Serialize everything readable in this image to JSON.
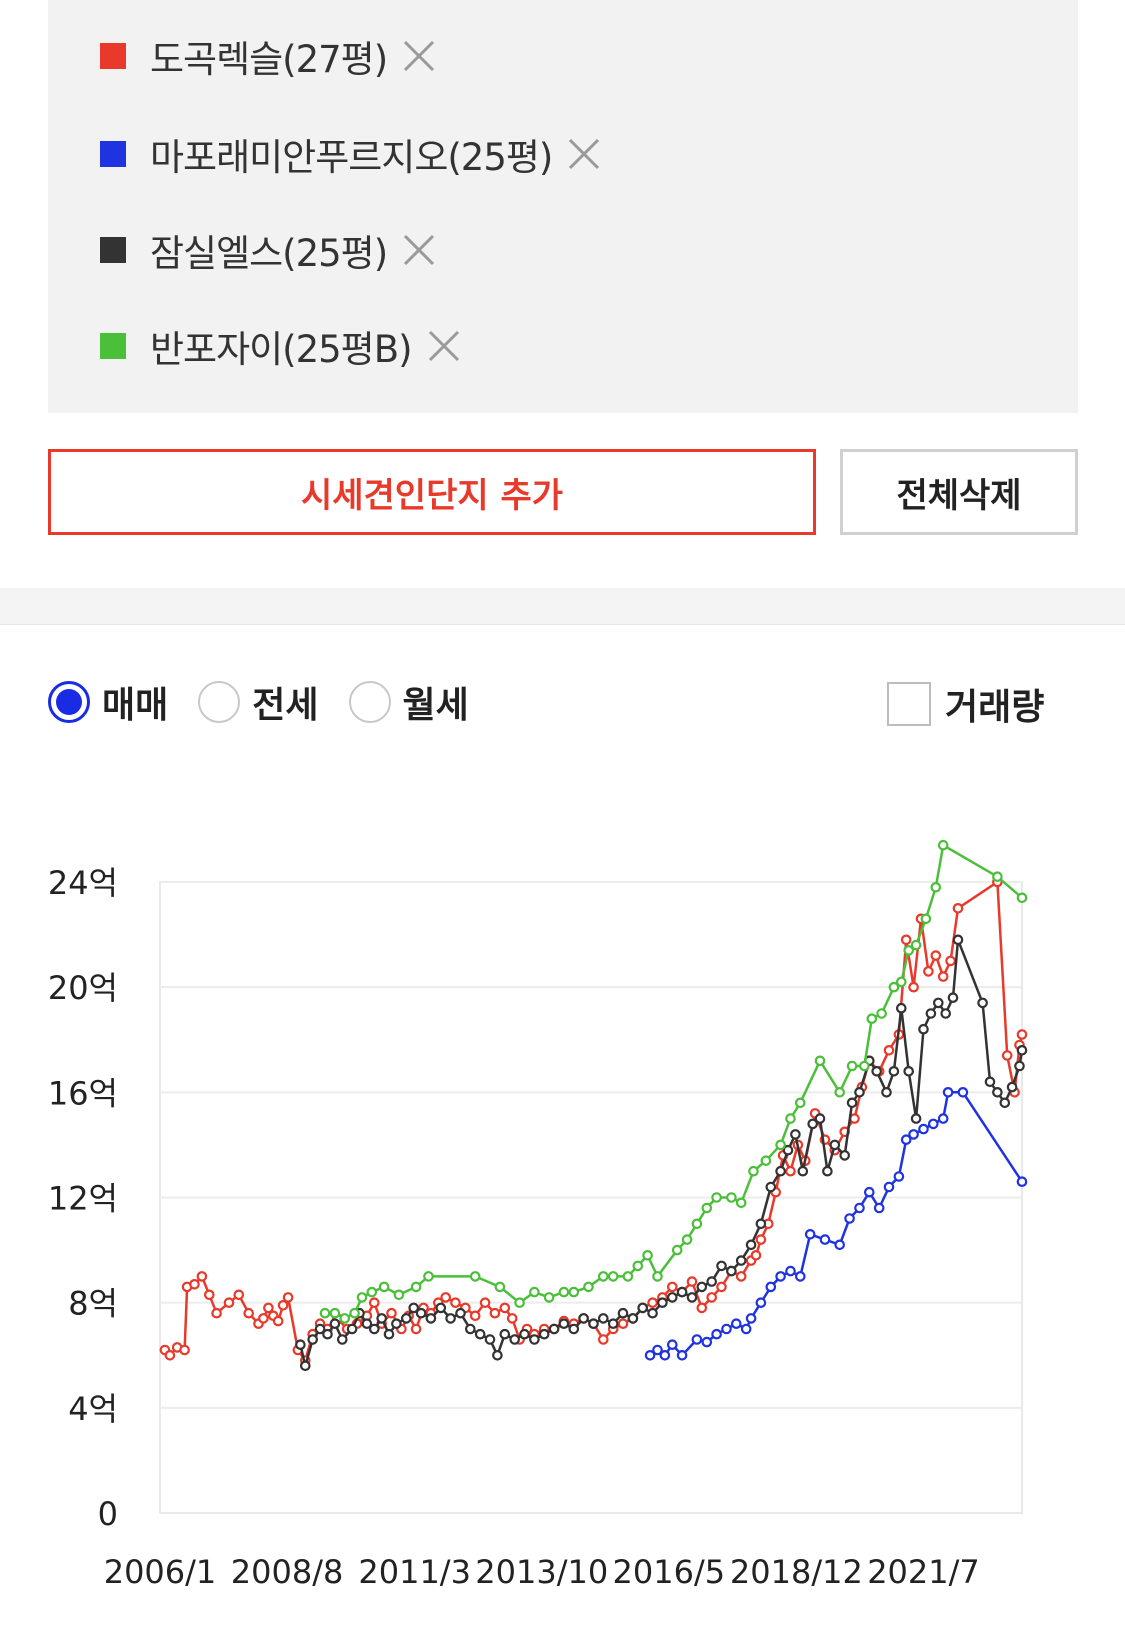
{
  "compare_list": {
    "items": [
      {
        "name": "도곡렉슬(27평)",
        "color": "#e8392a",
        "remove_icon": "close-icon"
      },
      {
        "name": "마포래미안푸르지오(25평)",
        "color": "#1f33e0",
        "remove_icon": "close-icon"
      },
      {
        "name": "잠실엘스(25평)",
        "color": "#333333",
        "remove_icon": "close-icon"
      },
      {
        "name": "반포자이(25평B)",
        "color": "#4bbf3a",
        "remove_icon": "close-icon"
      }
    ]
  },
  "actions": {
    "add_label": "시세견인단지 추가",
    "delete_all_label": "전체삭제"
  },
  "chart_controls": {
    "radios": [
      {
        "label": "매매",
        "checked": true
      },
      {
        "label": "전세",
        "checked": false
      },
      {
        "label": "월세",
        "checked": false
      }
    ],
    "volume_label": "거래량",
    "volume_checked": false
  },
  "chart_data": {
    "type": "line",
    "y_ticks": [
      "0",
      "4억",
      "8억",
      "12억",
      "16억",
      "20억",
      "24억"
    ],
    "ylim": [
      0,
      24
    ],
    "y_unit": "억",
    "x_ticks": [
      "2006/1",
      "2008/8",
      "2011/3",
      "2013/10",
      "2016/5",
      "2018/12",
      "2021/7"
    ],
    "x_tick_values": [
      2006.0,
      2008.58,
      2011.17,
      2013.75,
      2016.33,
      2018.92,
      2021.5
    ],
    "xlim": [
      2006.0,
      2023.5
    ],
    "grid": true,
    "series": [
      {
        "name": "도곡렉슬(27평)",
        "color": "#e8392a",
        "points": [
          [
            2006.1,
            6.2
          ],
          [
            2006.2,
            6.0
          ],
          [
            2006.35,
            6.3
          ],
          [
            2006.5,
            6.2
          ],
          [
            2006.55,
            8.6
          ],
          [
            2006.7,
            8.7
          ],
          [
            2006.85,
            9.0
          ],
          [
            2007.0,
            8.3
          ],
          [
            2007.15,
            7.6
          ],
          [
            2007.4,
            8.0
          ],
          [
            2007.6,
            8.3
          ],
          [
            2007.8,
            7.6
          ],
          [
            2008.0,
            7.2
          ],
          [
            2008.1,
            7.4
          ],
          [
            2008.2,
            7.8
          ],
          [
            2008.3,
            7.5
          ],
          [
            2008.4,
            7.3
          ],
          [
            2008.5,
            7.9
          ],
          [
            2008.6,
            8.2
          ],
          [
            2008.8,
            6.2
          ],
          [
            2008.95,
            5.8
          ],
          [
            2009.1,
            6.8
          ],
          [
            2009.25,
            7.2
          ],
          [
            2009.4,
            7.0
          ],
          [
            2009.6,
            7.4
          ],
          [
            2009.8,
            7.0
          ],
          [
            2010.0,
            7.2
          ],
          [
            2010.2,
            7.5
          ],
          [
            2010.35,
            8.0
          ],
          [
            2010.5,
            7.2
          ],
          [
            2010.7,
            7.6
          ],
          [
            2010.9,
            7.0
          ],
          [
            2011.05,
            7.5
          ],
          [
            2011.2,
            7.0
          ],
          [
            2011.35,
            7.8
          ],
          [
            2011.5,
            7.6
          ],
          [
            2011.65,
            8.0
          ],
          [
            2011.8,
            8.2
          ],
          [
            2012.0,
            8.0
          ],
          [
            2012.2,
            7.8
          ],
          [
            2012.4,
            7.5
          ],
          [
            2012.6,
            8.0
          ],
          [
            2012.8,
            7.6
          ],
          [
            2013.0,
            7.8
          ],
          [
            2013.15,
            7.4
          ],
          [
            2013.3,
            6.6
          ],
          [
            2013.45,
            7.0
          ],
          [
            2013.6,
            6.8
          ],
          [
            2013.8,
            7.0
          ],
          [
            2014.0,
            7.0
          ],
          [
            2014.2,
            7.3
          ],
          [
            2014.4,
            7.2
          ],
          [
            2014.6,
            7.4
          ],
          [
            2014.8,
            7.2
          ],
          [
            2015.0,
            6.6
          ],
          [
            2015.2,
            7.0
          ],
          [
            2015.4,
            7.2
          ],
          [
            2015.6,
            7.4
          ],
          [
            2015.8,
            7.8
          ],
          [
            2016.0,
            8.0
          ],
          [
            2016.2,
            8.2
          ],
          [
            2016.4,
            8.6
          ],
          [
            2016.6,
            8.4
          ],
          [
            2016.8,
            8.8
          ],
          [
            2017.0,
            7.8
          ],
          [
            2017.2,
            8.2
          ],
          [
            2017.4,
            8.6
          ],
          [
            2017.6,
            9.2
          ],
          [
            2017.8,
            9.0
          ],
          [
            2018.0,
            9.6
          ],
          [
            2018.1,
            9.8
          ],
          [
            2018.2,
            10.4
          ],
          [
            2018.35,
            11.0
          ],
          [
            2018.5,
            12.2
          ],
          [
            2018.65,
            13.6
          ],
          [
            2018.8,
            13.0
          ],
          [
            2018.95,
            14.0
          ],
          [
            2019.1,
            13.4
          ],
          [
            2019.3,
            15.2
          ],
          [
            2019.5,
            14.2
          ],
          [
            2019.7,
            13.8
          ],
          [
            2019.9,
            14.5
          ],
          [
            2020.1,
            15.0
          ],
          [
            2020.25,
            16.2
          ],
          [
            2020.4,
            17.2
          ],
          [
            2020.6,
            16.8
          ],
          [
            2020.8,
            17.6
          ],
          [
            2021.0,
            18.2
          ],
          [
            2021.15,
            21.8
          ],
          [
            2021.3,
            20.0
          ],
          [
            2021.45,
            22.6
          ],
          [
            2021.6,
            20.6
          ],
          [
            2021.75,
            21.2
          ],
          [
            2021.9,
            20.4
          ],
          [
            2022.05,
            21.0
          ],
          [
            2022.2,
            23.0
          ],
          [
            2023.0,
            24.0
          ],
          [
            2023.2,
            17.4
          ],
          [
            2023.35,
            16.0
          ],
          [
            2023.45,
            17.8
          ],
          [
            2023.5,
            18.2
          ]
        ]
      },
      {
        "name": "마포래미안푸르지오(25평)",
        "color": "#1f33e0",
        "points": [
          [
            2015.95,
            6.0
          ],
          [
            2016.1,
            6.2
          ],
          [
            2016.25,
            6.0
          ],
          [
            2016.4,
            6.4
          ],
          [
            2016.6,
            6.0
          ],
          [
            2016.9,
            6.6
          ],
          [
            2017.1,
            6.5
          ],
          [
            2017.3,
            6.8
          ],
          [
            2017.5,
            7.0
          ],
          [
            2017.7,
            7.2
          ],
          [
            2017.9,
            7.0
          ],
          [
            2018.0,
            7.4
          ],
          [
            2018.2,
            8.0
          ],
          [
            2018.4,
            8.6
          ],
          [
            2018.6,
            9.0
          ],
          [
            2018.8,
            9.2
          ],
          [
            2019.0,
            9.0
          ],
          [
            2019.2,
            10.6
          ],
          [
            2019.5,
            10.4
          ],
          [
            2019.8,
            10.2
          ],
          [
            2020.0,
            11.2
          ],
          [
            2020.2,
            11.6
          ],
          [
            2020.4,
            12.2
          ],
          [
            2020.6,
            11.6
          ],
          [
            2020.8,
            12.4
          ],
          [
            2021.0,
            12.8
          ],
          [
            2021.15,
            14.2
          ],
          [
            2021.3,
            14.4
          ],
          [
            2021.5,
            14.6
          ],
          [
            2021.7,
            14.8
          ],
          [
            2021.9,
            15.0
          ],
          [
            2022.0,
            16.0
          ],
          [
            2022.3,
            16.0
          ],
          [
            2023.5,
            12.6
          ]
        ]
      },
      {
        "name": "잠실엘스(25평)",
        "color": "#333333",
        "points": [
          [
            2008.85,
            6.4
          ],
          [
            2008.95,
            5.6
          ],
          [
            2009.1,
            6.6
          ],
          [
            2009.25,
            7.0
          ],
          [
            2009.4,
            6.8
          ],
          [
            2009.55,
            7.2
          ],
          [
            2009.7,
            6.6
          ],
          [
            2009.9,
            7.0
          ],
          [
            2010.05,
            7.6
          ],
          [
            2010.2,
            7.2
          ],
          [
            2010.35,
            7.0
          ],
          [
            2010.5,
            7.4
          ],
          [
            2010.65,
            6.8
          ],
          [
            2010.8,
            7.2
          ],
          [
            2011.0,
            7.4
          ],
          [
            2011.15,
            7.8
          ],
          [
            2011.3,
            7.6
          ],
          [
            2011.5,
            7.4
          ],
          [
            2011.7,
            7.8
          ],
          [
            2011.9,
            7.4
          ],
          [
            2012.1,
            7.6
          ],
          [
            2012.3,
            7.0
          ],
          [
            2012.5,
            6.8
          ],
          [
            2012.7,
            6.6
          ],
          [
            2012.85,
            6.0
          ],
          [
            2013.0,
            6.8
          ],
          [
            2013.2,
            6.6
          ],
          [
            2013.4,
            6.8
          ],
          [
            2013.6,
            6.6
          ],
          [
            2013.8,
            6.8
          ],
          [
            2014.0,
            7.0
          ],
          [
            2014.2,
            7.2
          ],
          [
            2014.4,
            7.0
          ],
          [
            2014.6,
            7.4
          ],
          [
            2014.8,
            7.2
          ],
          [
            2015.0,
            7.4
          ],
          [
            2015.2,
            7.2
          ],
          [
            2015.4,
            7.6
          ],
          [
            2015.6,
            7.4
          ],
          [
            2015.8,
            7.8
          ],
          [
            2016.0,
            7.6
          ],
          [
            2016.2,
            8.0
          ],
          [
            2016.4,
            8.2
          ],
          [
            2016.6,
            8.4
          ],
          [
            2016.8,
            8.2
          ],
          [
            2017.0,
            8.6
          ],
          [
            2017.2,
            8.8
          ],
          [
            2017.4,
            9.4
          ],
          [
            2017.6,
            9.2
          ],
          [
            2017.8,
            9.6
          ],
          [
            2018.0,
            10.2
          ],
          [
            2018.2,
            11.0
          ],
          [
            2018.4,
            12.4
          ],
          [
            2018.6,
            13.0
          ],
          [
            2018.75,
            13.8
          ],
          [
            2018.9,
            14.4
          ],
          [
            2019.05,
            13.0
          ],
          [
            2019.25,
            14.8
          ],
          [
            2019.4,
            15.0
          ],
          [
            2019.55,
            13.0
          ],
          [
            2019.7,
            14.0
          ],
          [
            2019.9,
            13.6
          ],
          [
            2020.05,
            15.6
          ],
          [
            2020.2,
            16.0
          ],
          [
            2020.4,
            17.2
          ],
          [
            2020.55,
            16.8
          ],
          [
            2020.75,
            16.0
          ],
          [
            2020.9,
            16.8
          ],
          [
            2021.05,
            19.2
          ],
          [
            2021.2,
            16.8
          ],
          [
            2021.35,
            15.0
          ],
          [
            2021.5,
            18.4
          ],
          [
            2021.65,
            19.0
          ],
          [
            2021.8,
            19.4
          ],
          [
            2021.95,
            19.0
          ],
          [
            2022.1,
            19.6
          ],
          [
            2022.2,
            21.8
          ],
          [
            2022.7,
            19.4
          ],
          [
            2022.85,
            16.4
          ],
          [
            2023.0,
            16.0
          ],
          [
            2023.15,
            15.6
          ],
          [
            2023.3,
            16.2
          ],
          [
            2023.45,
            17.0
          ],
          [
            2023.5,
            17.6
          ]
        ]
      },
      {
        "name": "반포자이(25평B)",
        "color": "#4bbf3a",
        "points": [
          [
            2009.35,
            7.6
          ],
          [
            2009.55,
            7.6
          ],
          [
            2009.75,
            7.4
          ],
          [
            2009.95,
            7.6
          ],
          [
            2010.1,
            8.2
          ],
          [
            2010.3,
            8.4
          ],
          [
            2010.55,
            8.6
          ],
          [
            2010.85,
            8.3
          ],
          [
            2011.2,
            8.6
          ],
          [
            2011.45,
            9.0
          ],
          [
            2012.4,
            9.0
          ],
          [
            2012.9,
            8.6
          ],
          [
            2013.3,
            8.0
          ],
          [
            2013.6,
            8.4
          ],
          [
            2013.9,
            8.2
          ],
          [
            2014.2,
            8.4
          ],
          [
            2014.4,
            8.4
          ],
          [
            2014.7,
            8.6
          ],
          [
            2015.0,
            9.0
          ],
          [
            2015.2,
            9.0
          ],
          [
            2015.5,
            9.0
          ],
          [
            2015.7,
            9.4
          ],
          [
            2015.9,
            9.8
          ],
          [
            2016.1,
            9.0
          ],
          [
            2016.5,
            10.0
          ],
          [
            2016.7,
            10.4
          ],
          [
            2016.9,
            11.0
          ],
          [
            2017.1,
            11.6
          ],
          [
            2017.3,
            12.0
          ],
          [
            2017.6,
            12.0
          ],
          [
            2017.8,
            11.8
          ],
          [
            2018.05,
            13.0
          ],
          [
            2018.3,
            13.4
          ],
          [
            2018.6,
            14.0
          ],
          [
            2018.8,
            15.0
          ],
          [
            2019.0,
            15.6
          ],
          [
            2019.4,
            17.2
          ],
          [
            2019.8,
            16.0
          ],
          [
            2020.05,
            17.0
          ],
          [
            2020.3,
            17.0
          ],
          [
            2020.45,
            18.8
          ],
          [
            2020.65,
            19.0
          ],
          [
            2020.9,
            20.0
          ],
          [
            2021.05,
            20.2
          ],
          [
            2021.2,
            21.4
          ],
          [
            2021.35,
            21.6
          ],
          [
            2021.55,
            22.6
          ],
          [
            2021.75,
            23.8
          ],
          [
            2021.9,
            25.4
          ],
          [
            2023.0,
            24.2
          ],
          [
            2023.5,
            23.4
          ]
        ]
      }
    ]
  }
}
